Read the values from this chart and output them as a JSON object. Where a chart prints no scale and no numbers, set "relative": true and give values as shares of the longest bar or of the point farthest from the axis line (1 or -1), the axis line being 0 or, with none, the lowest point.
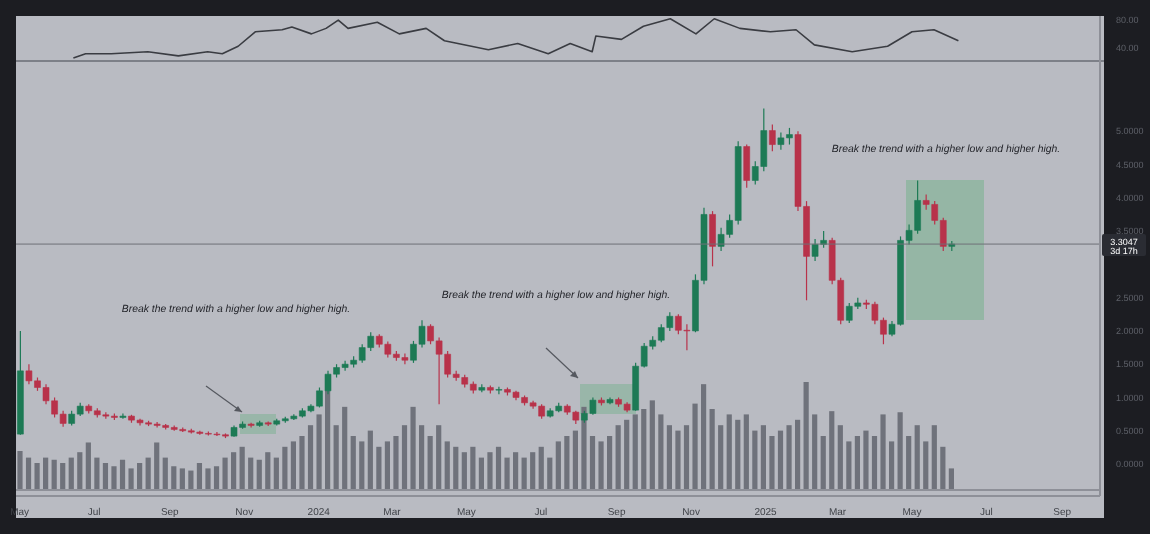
{
  "chart_data": [
    {
      "type": "line",
      "tick_labels": "y",
      "xlim": [
        "2023-04-28",
        "2025-10-02"
      ],
      "ylim": [
        22,
        86
      ],
      "yticks": [
        {
          "value": 80,
          "label": "80.00"
        },
        {
          "value": 40,
          "label": "40.00"
        }
      ],
      "x": [
        "2023-06-14",
        "2023-06-24",
        "2023-07-15",
        "2023-08-14",
        "2023-09-08",
        "2023-10-02",
        "2023-10-14",
        "2023-10-27",
        "2023-11-10",
        "2023-12-02",
        "2023-12-10",
        "2023-12-26",
        "2024-01-07",
        "2024-01-17",
        "2024-01-25",
        "2024-02-18",
        "2024-03-07",
        "2024-03-29",
        "2024-04-13",
        "2024-05-19",
        "2024-06-12",
        "2024-07-07",
        "2024-07-25",
        "2024-08-12",
        "2024-08-15",
        "2024-09-05",
        "2024-09-23",
        "2024-10-15",
        "2024-11-05",
        "2024-11-20",
        "2024-12-11",
        "2025-01-05",
        "2025-01-26",
        "2025-02-10",
        "2025-03-13",
        "2025-04-11",
        "2025-05-01",
        "2025-05-19",
        "2025-06-08"
      ],
      "series": [
        {
          "color": "#3a3c42",
          "values": [
            25,
            31,
            31,
            34,
            28,
            34,
            31,
            42,
            63,
            66,
            70,
            60,
            68,
            80,
            68,
            77,
            60,
            68,
            50,
            37,
            46,
            31,
            46,
            34,
            57,
            52,
            71,
            82,
            60,
            82,
            68,
            63,
            66,
            44,
            34,
            42,
            63,
            66,
            50
          ]
        }
      ]
    },
    {
      "type": "candlestick",
      "xlim": [
        "2023-04-28",
        "2025-10-02"
      ],
      "ylim": [
        -0.48,
        6.07
      ],
      "xticks": [
        {
          "value": "2023-05-01",
          "label": "May"
        },
        {
          "value": "2023-07-01",
          "label": "Jul"
        },
        {
          "value": "2023-09-01",
          "label": "Sep"
        },
        {
          "value": "2023-11-01",
          "label": "Nov"
        },
        {
          "value": "2024-01-01",
          "label": "2024"
        },
        {
          "value": "2024-03-01",
          "label": "Mar"
        },
        {
          "value": "2024-05-01",
          "label": "May"
        },
        {
          "value": "2024-07-01",
          "label": "Jul"
        },
        {
          "value": "2024-09-01",
          "label": "Sep"
        },
        {
          "value": "2024-11-01",
          "label": "Nov"
        },
        {
          "value": "2025-01-01",
          "label": "2025"
        },
        {
          "value": "2025-03-01",
          "label": "Mar"
        },
        {
          "value": "2025-05-01",
          "label": "May"
        },
        {
          "value": "2025-07-01",
          "label": "Jul"
        },
        {
          "value": "2025-09-01",
          "label": "Sep"
        }
      ],
      "yticks": [
        {
          "value": 0,
          "label": "0.0000"
        },
        {
          "value": 0.5,
          "label": "0.5000"
        },
        {
          "value": 1,
          "label": "1.0000"
        },
        {
          "value": 1.5,
          "label": "1.5000"
        },
        {
          "value": 2,
          "label": "2.0000"
        },
        {
          "value": 2.5,
          "label": "2.5000"
        },
        {
          "value": 3.5,
          "label": "3.5000"
        },
        {
          "value": 4,
          "label": "4.0000"
        },
        {
          "value": 4.5,
          "label": "4.5000"
        },
        {
          "value": 5,
          "label": "5.0000"
        }
      ],
      "colors": [
        "#1d7a55",
        "#b8324a",
        "#b8324a",
        "#b8324a",
        "#b8324a",
        "#b8324a",
        "#1d7a55",
        "#1d7a55",
        "#b8324a",
        "#b8324a",
        "#b8324a",
        "#b8324a",
        "#1d7a55",
        "#b8324a",
        "#b8324a",
        "#b8324a",
        "#b8324a",
        "#b8324a",
        "#b8324a",
        "#b8324a",
        "#b8324a",
        "#b8324a",
        "#b8324a",
        "#b8324a",
        "#b8324a",
        "#1d7a55",
        "#1d7a55",
        "#b8324a",
        "#1d7a55",
        "#b8324a",
        "#1d7a55",
        "#1d7a55",
        "#1d7a55",
        "#1d7a55",
        "#1d7a55",
        "#1d7a55",
        "#1d7a55",
        "#1d7a55",
        "#1d7a55",
        "#1d7a55",
        "#1d7a55",
        "#1d7a55",
        "#b8324a",
        "#b8324a",
        "#b8324a",
        "#b8324a",
        "#1d7a55",
        "#1d7a55",
        "#b8324a",
        "#b8324a",
        "#b8324a",
        "#b8324a",
        "#b8324a",
        "#b8324a",
        "#1d7a55",
        "#b8324a",
        "#1d7a55",
        "#b8324a",
        "#b8324a",
        "#b8324a",
        "#b8324a",
        "#b8324a",
        "#1d7a55",
        "#1d7a55",
        "#b8324a",
        "#b8324a",
        "#1d7a55",
        "#1d7a55",
        "#b8324a",
        "#1d7a55",
        "#b8324a",
        "#b8324a",
        "#1d7a55",
        "#1d7a55",
        "#1d7a55",
        "#1d7a55",
        "#1d7a55",
        "#b8324a",
        "#b8324a",
        "#1d7a55",
        "#1d7a55",
        "#b8324a",
        "#1d7a55",
        "#1d7a55",
        "#1d7a55",
        "#b8324a",
        "#1d7a55",
        "#1d7a55",
        "#b8324a",
        "#1d7a55",
        "#1d7a55",
        "#b8324a",
        "#b8324a",
        "#1d7a55",
        "#1d7a55",
        "#b8324a",
        "#b8324a",
        "#1d7a55",
        "#1d7a55",
        "#b8324a",
        "#b8324a",
        "#b8324a",
        "#1d7a55",
        "#1d7a55",
        "#1d7a55",
        "#1d7a55",
        "#b8324a",
        "#b8324a",
        "#b8324a",
        "#1d7a55"
      ],
      "ref_lines": [
        {
          "axis": "y",
          "value": 3.3047,
          "label": "3.3047",
          "color": "#6e7078"
        }
      ],
      "annotations": [
        "Break the trend with a higher low and higher high.",
        "Break the trend with a higher low and higher high.",
        "Break the trend with a higher low and higher high.",
        "3d 17h"
      ],
      "x": [
        "2023-05-01",
        "2023-05-08",
        "2023-05-15",
        "2023-05-22",
        "2023-05-29",
        "2023-06-05",
        "2023-06-12",
        "2023-06-19",
        "2023-06-26",
        "2023-07-03",
        "2023-07-10",
        "2023-07-17",
        "2023-07-24",
        "2023-07-31",
        "2023-08-07",
        "2023-08-14",
        "2023-08-21",
        "2023-08-28",
        "2023-09-04",
        "2023-09-11",
        "2023-09-18",
        "2023-09-25",
        "2023-10-02",
        "2023-10-09",
        "2023-10-16",
        "2023-10-23",
        "2023-10-30",
        "2023-11-06",
        "2023-11-13",
        "2023-11-20",
        "2023-11-27",
        "2023-12-04",
        "2023-12-11",
        "2023-12-18",
        "2023-12-25",
        "2024-01-01",
        "2024-01-08",
        "2024-01-15",
        "2024-01-22",
        "2024-01-29",
        "2024-02-05",
        "2024-02-12",
        "2024-02-19",
        "2024-02-26",
        "2024-03-04",
        "2024-03-11",
        "2024-03-18",
        "2024-03-25",
        "2024-04-01",
        "2024-04-08",
        "2024-04-15",
        "2024-04-22",
        "2024-04-29",
        "2024-05-06",
        "2024-05-13",
        "2024-05-20",
        "2024-05-27",
        "2024-06-03",
        "2024-06-10",
        "2024-06-17",
        "2024-06-24",
        "2024-07-01",
        "2024-07-08",
        "2024-07-15",
        "2024-07-22",
        "2024-07-29",
        "2024-08-05",
        "2024-08-12",
        "2024-08-19",
        "2024-08-26",
        "2024-09-02",
        "2024-09-09",
        "2024-09-16",
        "2024-09-23",
        "2024-09-30",
        "2024-10-07",
        "2024-10-14",
        "2024-10-21",
        "2024-10-28",
        "2024-11-04",
        "2024-11-11",
        "2024-11-18",
        "2024-11-25",
        "2024-12-02",
        "2024-12-09",
        "2024-12-16",
        "2024-12-23",
        "2024-12-30",
        "2025-01-06",
        "2025-01-13",
        "2025-01-20",
        "2025-01-27",
        "2025-02-03",
        "2025-02-10",
        "2025-02-17",
        "2025-02-24",
        "2025-03-03",
        "2025-03-10",
        "2025-03-17",
        "2025-03-24",
        "2025-03-31",
        "2025-04-07",
        "2025-04-14",
        "2025-04-21",
        "2025-04-28",
        "2025-05-05",
        "2025-05-12",
        "2025-05-19",
        "2025-05-26",
        "2025-06-02"
      ],
      "ohlc": [
        [
          0.45,
          2.0,
          0.44,
          1.4
        ],
        [
          1.4,
          1.5,
          1.2,
          1.25
        ],
        [
          1.25,
          1.3,
          1.1,
          1.15
        ],
        [
          1.15,
          1.2,
          0.9,
          0.95
        ],
        [
          0.95,
          1.0,
          0.7,
          0.75
        ],
        [
          0.75,
          0.8,
          0.56,
          0.61
        ],
        [
          0.61,
          0.8,
          0.58,
          0.75
        ],
        [
          0.75,
          0.92,
          0.72,
          0.87
        ],
        [
          0.87,
          0.9,
          0.76,
          0.8
        ],
        [
          0.8,
          0.84,
          0.7,
          0.74
        ],
        [
          0.74,
          0.78,
          0.68,
          0.72
        ],
        [
          0.72,
          0.76,
          0.66,
          0.7
        ],
        [
          0.7,
          0.76,
          0.68,
          0.72
        ],
        [
          0.72,
          0.74,
          0.62,
          0.66
        ],
        [
          0.66,
          0.68,
          0.58,
          0.62
        ],
        [
          0.62,
          0.65,
          0.57,
          0.6
        ],
        [
          0.6,
          0.63,
          0.55,
          0.58
        ],
        [
          0.58,
          0.6,
          0.52,
          0.55
        ],
        [
          0.55,
          0.58,
          0.5,
          0.52
        ],
        [
          0.52,
          0.55,
          0.48,
          0.5
        ],
        [
          0.5,
          0.53,
          0.46,
          0.48
        ],
        [
          0.48,
          0.5,
          0.44,
          0.46
        ],
        [
          0.46,
          0.49,
          0.43,
          0.45
        ],
        [
          0.45,
          0.48,
          0.42,
          0.44
        ],
        [
          0.44,
          0.46,
          0.39,
          0.42
        ],
        [
          0.42,
          0.58,
          0.41,
          0.55
        ],
        [
          0.55,
          0.64,
          0.53,
          0.6
        ],
        [
          0.6,
          0.62,
          0.55,
          0.58
        ],
        [
          0.58,
          0.65,
          0.56,
          0.62
        ],
        [
          0.62,
          0.64,
          0.57,
          0.6
        ],
        [
          0.6,
          0.68,
          0.58,
          0.65
        ],
        [
          0.65,
          0.71,
          0.62,
          0.68
        ],
        [
          0.68,
          0.75,
          0.66,
          0.72
        ],
        [
          0.72,
          0.84,
          0.7,
          0.8
        ],
        [
          0.8,
          0.9,
          0.78,
          0.87
        ],
        [
          0.87,
          1.15,
          0.85,
          1.1
        ],
        [
          1.1,
          1.4,
          1.05,
          1.35
        ],
        [
          1.35,
          1.5,
          1.3,
          1.45
        ],
        [
          1.45,
          1.55,
          1.4,
          1.5
        ],
        [
          1.5,
          1.62,
          1.45,
          1.56
        ],
        [
          1.56,
          1.8,
          1.52,
          1.75
        ],
        [
          1.75,
          1.98,
          1.7,
          1.92
        ],
        [
          1.92,
          1.95,
          1.75,
          1.8
        ],
        [
          1.8,
          1.84,
          1.6,
          1.65
        ],
        [
          1.65,
          1.7,
          1.55,
          1.6
        ],
        [
          1.6,
          1.66,
          1.5,
          1.56
        ],
        [
          1.56,
          1.85,
          1.52,
          1.8
        ],
        [
          1.8,
          2.16,
          1.75,
          2.07
        ],
        [
          2.07,
          2.1,
          1.8,
          1.85
        ],
        [
          1.85,
          1.9,
          0.9,
          1.65
        ],
        [
          1.65,
          1.7,
          1.3,
          1.35
        ],
        [
          1.35,
          1.4,
          1.25,
          1.3
        ],
        [
          1.3,
          1.34,
          1.15,
          1.2
        ],
        [
          1.2,
          1.24,
          1.06,
          1.11
        ],
        [
          1.11,
          1.2,
          1.08,
          1.15
        ],
        [
          1.15,
          1.18,
          1.06,
          1.11
        ],
        [
          1.11,
          1.16,
          1.05,
          1.12
        ],
        [
          1.12,
          1.15,
          1.03,
          1.08
        ],
        [
          1.08,
          1.1,
          0.96,
          1.0
        ],
        [
          1.0,
          1.03,
          0.88,
          0.92
        ],
        [
          0.92,
          0.95,
          0.83,
          0.87
        ],
        [
          0.87,
          0.9,
          0.68,
          0.72
        ],
        [
          0.72,
          0.84,
          0.7,
          0.8
        ],
        [
          0.8,
          0.92,
          0.78,
          0.87
        ],
        [
          0.87,
          0.9,
          0.74,
          0.78
        ],
        [
          0.78,
          0.8,
          0.6,
          0.66
        ],
        [
          0.66,
          0.8,
          0.62,
          0.76
        ],
        [
          0.76,
          1.0,
          0.74,
          0.96
        ],
        [
          0.96,
          1.0,
          0.88,
          0.92
        ],
        [
          0.92,
          1.0,
          0.9,
          0.97
        ],
        [
          0.97,
          1.0,
          0.86,
          0.9
        ],
        [
          0.9,
          0.93,
          0.78,
          0.81
        ],
        [
          0.81,
          1.52,
          0.8,
          1.47
        ],
        [
          1.47,
          1.82,
          1.45,
          1.77
        ],
        [
          1.77,
          1.92,
          1.72,
          1.86
        ],
        [
          1.86,
          2.1,
          1.83,
          2.05
        ],
        [
          2.05,
          2.28,
          2.0,
          2.22
        ],
        [
          2.22,
          2.25,
          1.95,
          2.01
        ],
        [
          2.01,
          2.1,
          1.71,
          2.0
        ],
        [
          2.0,
          2.85,
          1.98,
          2.76
        ],
        [
          2.76,
          3.85,
          2.7,
          3.75
        ],
        [
          3.75,
          3.8,
          2.97,
          3.27
        ],
        [
          3.27,
          3.55,
          3.2,
          3.45
        ],
        [
          3.45,
          3.75,
          3.4,
          3.66
        ],
        [
          3.66,
          4.85,
          3.6,
          4.77
        ],
        [
          4.77,
          4.8,
          4.15,
          4.26
        ],
        [
          4.26,
          4.55,
          4.2,
          4.47
        ],
        [
          4.47,
          5.34,
          4.4,
          5.01
        ],
        [
          5.01,
          5.1,
          4.7,
          4.8
        ],
        [
          4.8,
          4.98,
          4.72,
          4.9
        ],
        [
          4.9,
          5.05,
          4.8,
          4.95
        ],
        [
          4.95,
          5.0,
          3.8,
          3.87
        ],
        [
          3.87,
          3.95,
          2.46,
          3.12
        ],
        [
          3.12,
          3.38,
          3.05,
          3.3
        ],
        [
          3.3,
          3.5,
          3.25,
          3.36
        ],
        [
          3.36,
          3.4,
          2.7,
          2.76
        ],
        [
          2.76,
          2.8,
          2.1,
          2.16
        ],
        [
          2.16,
          2.42,
          2.12,
          2.37
        ],
        [
          2.37,
          2.5,
          2.33,
          2.42
        ],
        [
          2.42,
          2.47,
          2.33,
          2.4
        ],
        [
          2.4,
          2.44,
          2.1,
          2.16
        ],
        [
          2.16,
          2.2,
          1.8,
          1.95
        ],
        [
          1.95,
          2.15,
          1.92,
          2.1
        ],
        [
          2.1,
          3.42,
          2.08,
          3.36
        ],
        [
          3.36,
          3.6,
          3.3,
          3.51
        ],
        [
          3.51,
          4.26,
          3.46,
          3.96
        ],
        [
          3.96,
          4.05,
          3.82,
          3.9
        ],
        [
          3.9,
          3.95,
          3.6,
          3.66
        ],
        [
          3.66,
          3.7,
          3.2,
          3.27
        ],
        [
          3.27,
          3.35,
          3.2,
          3.3047
        ]
      ]
    },
    {
      "type": "bar",
      "relative": true,
      "tick_labels": false,
      "xlim": [
        "2023-04-28",
        "2025-10-02"
      ],
      "color": "#6f727b",
      "x": [
        "2023-05-01",
        "2023-05-08",
        "2023-05-15",
        "2023-05-22",
        "2023-05-29",
        "2023-06-05",
        "2023-06-12",
        "2023-06-19",
        "2023-06-26",
        "2023-07-03",
        "2023-07-10",
        "2023-07-17",
        "2023-07-24",
        "2023-07-31",
        "2023-08-07",
        "2023-08-14",
        "2023-08-21",
        "2023-08-28",
        "2023-09-04",
        "2023-09-11",
        "2023-09-18",
        "2023-09-25",
        "2023-10-02",
        "2023-10-09",
        "2023-10-16",
        "2023-10-23",
        "2023-10-30",
        "2023-11-06",
        "2023-11-13",
        "2023-11-20",
        "2023-11-27",
        "2023-12-04",
        "2023-12-11",
        "2023-12-18",
        "2023-12-25",
        "2024-01-01",
        "2024-01-08",
        "2024-01-15",
        "2024-01-22",
        "2024-01-29",
        "2024-02-05",
        "2024-02-12",
        "2024-02-19",
        "2024-02-26",
        "2024-03-04",
        "2024-03-11",
        "2024-03-18",
        "2024-03-25",
        "2024-04-01",
        "2024-04-08",
        "2024-04-15",
        "2024-04-22",
        "2024-04-29",
        "2024-05-06",
        "2024-05-13",
        "2024-05-20",
        "2024-05-27",
        "2024-06-03",
        "2024-06-10",
        "2024-06-17",
        "2024-06-24",
        "2024-07-01",
        "2024-07-08",
        "2024-07-15",
        "2024-07-22",
        "2024-07-29",
        "2024-08-05",
        "2024-08-12",
        "2024-08-19",
        "2024-08-26",
        "2024-09-02",
        "2024-09-09",
        "2024-09-16",
        "2024-09-23",
        "2024-09-30",
        "2024-10-07",
        "2024-10-14",
        "2024-10-21",
        "2024-10-28",
        "2024-11-04",
        "2024-11-11",
        "2024-11-18",
        "2024-11-25",
        "2024-12-02",
        "2024-12-09",
        "2024-12-16",
        "2024-12-23",
        "2024-12-30",
        "2025-01-06",
        "2025-01-13",
        "2025-01-20",
        "2025-01-27",
        "2025-02-03",
        "2025-02-10",
        "2025-02-17",
        "2025-02-24",
        "2025-03-03",
        "2025-03-10",
        "2025-03-17",
        "2025-03-24",
        "2025-03-31",
        "2025-04-07",
        "2025-04-14",
        "2025-04-21",
        "2025-04-28",
        "2025-05-05",
        "2025-05-12",
        "2025-05-19",
        "2025-05-26",
        "2025-06-02"
      ],
      "values": [
        0.36,
        0.3,
        0.25,
        0.3,
        0.28,
        0.25,
        0.3,
        0.35,
        0.44,
        0.3,
        0.25,
        0.22,
        0.28,
        0.2,
        0.25,
        0.3,
        0.44,
        0.3,
        0.22,
        0.2,
        0.18,
        0.25,
        0.2,
        0.22,
        0.3,
        0.35,
        0.4,
        0.3,
        0.28,
        0.35,
        0.3,
        0.4,
        0.45,
        0.5,
        0.6,
        0.7,
        0.95,
        0.6,
        0.77,
        0.5,
        0.45,
        0.55,
        0.4,
        0.45,
        0.5,
        0.6,
        0.77,
        0.6,
        0.5,
        0.6,
        0.45,
        0.4,
        0.35,
        0.4,
        0.3,
        0.35,
        0.4,
        0.3,
        0.35,
        0.3,
        0.35,
        0.4,
        0.3,
        0.45,
        0.5,
        0.55,
        0.77,
        0.5,
        0.45,
        0.5,
        0.6,
        0.65,
        0.7,
        0.75,
        0.83,
        0.7,
        0.6,
        0.55,
        0.6,
        0.8,
        0.98,
        0.75,
        0.6,
        0.7,
        0.65,
        0.7,
        0.55,
        0.6,
        0.5,
        0.55,
        0.6,
        0.65,
        1,
        0.7,
        0.5,
        0.73,
        0.6,
        0.45,
        0.5,
        0.55,
        0.5,
        0.7,
        0.45,
        0.72,
        0.5,
        0.6,
        0.45,
        0.6,
        0.4,
        0.2
      ]
    }
  ]
}
